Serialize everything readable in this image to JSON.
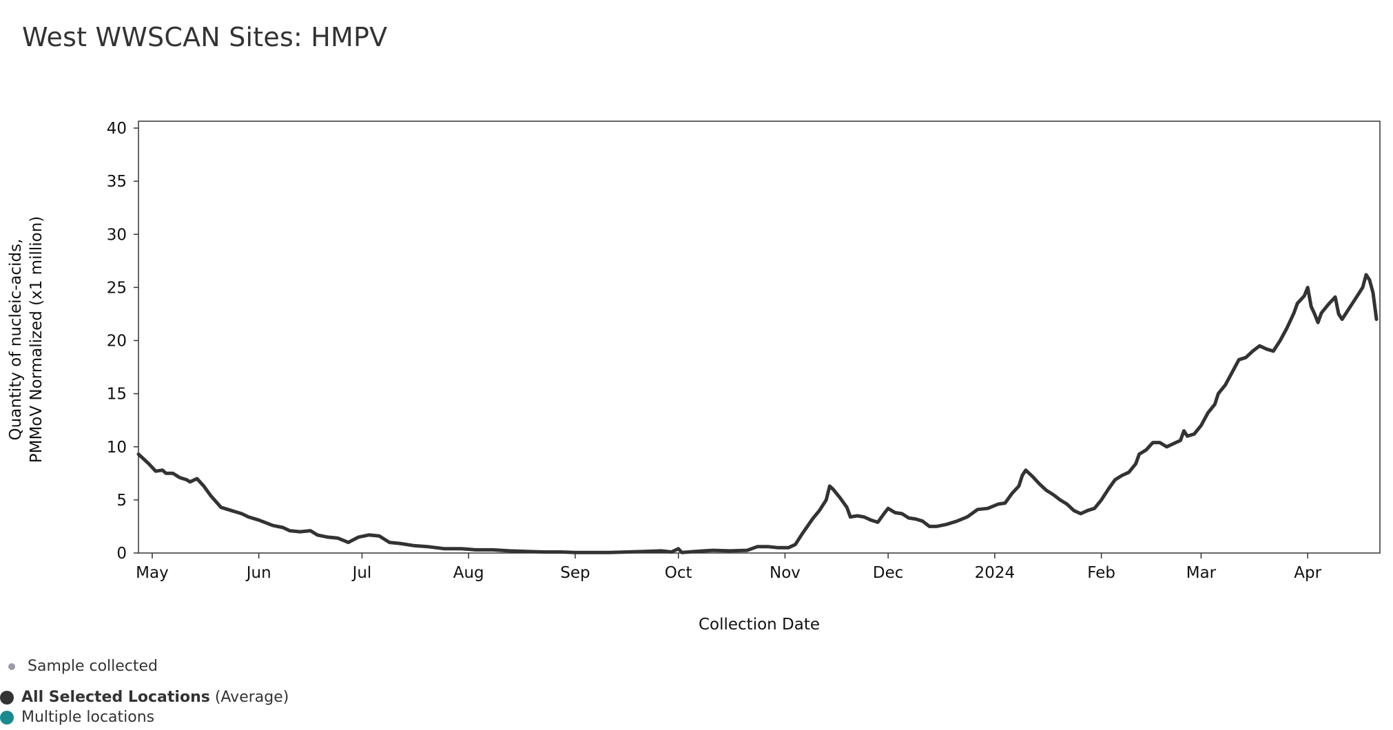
{
  "title": "West WWSCAN Sites: HMPV",
  "chart_data": {
    "type": "line",
    "title": "West WWSCAN Sites: HMPV",
    "xlabel": "Collection Date",
    "ylabel_line1": "Quantity of nucleic-acids,",
    "ylabel_line2": "PMMoV Normalized (x1 million)",
    "ylim": [
      0,
      40
    ],
    "yticks": [
      0,
      5,
      10,
      15,
      20,
      25,
      30,
      35,
      40
    ],
    "xlim": [
      "2023-04-27",
      "2024-04-22"
    ],
    "xticks": [
      {
        "date": "2023-05-01",
        "label": "May"
      },
      {
        "date": "2023-06-01",
        "label": "Jun"
      },
      {
        "date": "2023-07-01",
        "label": "Jul"
      },
      {
        "date": "2023-08-01",
        "label": "Aug"
      },
      {
        "date": "2023-09-01",
        "label": "Sep"
      },
      {
        "date": "2023-10-01",
        "label": "Oct"
      },
      {
        "date": "2023-11-01",
        "label": "Nov"
      },
      {
        "date": "2023-12-01",
        "label": "Dec"
      },
      {
        "date": "2024-01-01",
        "label": "2024"
      },
      {
        "date": "2024-02-01",
        "label": "Feb"
      },
      {
        "date": "2024-03-01",
        "label": "Mar"
      },
      {
        "date": "2024-04-01",
        "label": "Apr"
      }
    ],
    "grid": false,
    "series": [
      {
        "name": "All Selected Locations",
        "color": "#333333",
        "points": [
          [
            "2023-04-27",
            9.3
          ],
          [
            "2023-04-30",
            8.4
          ],
          [
            "2023-05-02",
            7.7
          ],
          [
            "2023-05-04",
            7.8
          ],
          [
            "2023-05-05",
            7.5
          ],
          [
            "2023-05-07",
            7.5
          ],
          [
            "2023-05-09",
            7.1
          ],
          [
            "2023-05-11",
            6.9
          ],
          [
            "2023-05-12",
            6.7
          ],
          [
            "2023-05-14",
            7.0
          ],
          [
            "2023-05-16",
            6.3
          ],
          [
            "2023-05-18",
            5.4
          ],
          [
            "2023-05-21",
            4.3
          ],
          [
            "2023-05-24",
            4.0
          ],
          [
            "2023-05-27",
            3.7
          ],
          [
            "2023-05-29",
            3.4
          ],
          [
            "2023-06-01",
            3.1
          ],
          [
            "2023-06-05",
            2.6
          ],
          [
            "2023-06-08",
            2.4
          ],
          [
            "2023-06-10",
            2.1
          ],
          [
            "2023-06-13",
            2.0
          ],
          [
            "2023-06-16",
            2.1
          ],
          [
            "2023-06-18",
            1.7
          ],
          [
            "2023-06-21",
            1.5
          ],
          [
            "2023-06-24",
            1.4
          ],
          [
            "2023-06-27",
            1.0
          ],
          [
            "2023-06-30",
            1.5
          ],
          [
            "2023-07-03",
            1.7
          ],
          [
            "2023-07-06",
            1.6
          ],
          [
            "2023-07-09",
            1.0
          ],
          [
            "2023-07-12",
            0.9
          ],
          [
            "2023-07-16",
            0.7
          ],
          [
            "2023-07-20",
            0.6
          ],
          [
            "2023-07-25",
            0.4
          ],
          [
            "2023-07-30",
            0.4
          ],
          [
            "2023-08-03",
            0.3
          ],
          [
            "2023-08-08",
            0.3
          ],
          [
            "2023-08-13",
            0.2
          ],
          [
            "2023-08-18",
            0.15
          ],
          [
            "2023-08-23",
            0.1
          ],
          [
            "2023-08-28",
            0.1
          ],
          [
            "2023-09-01",
            0.05
          ],
          [
            "2023-09-06",
            0.05
          ],
          [
            "2023-09-11",
            0.05
          ],
          [
            "2023-09-16",
            0.1
          ],
          [
            "2023-09-21",
            0.15
          ],
          [
            "2023-09-26",
            0.2
          ],
          [
            "2023-09-29",
            0.1
          ],
          [
            "2023-10-01",
            0.4
          ],
          [
            "2023-10-02",
            0.05
          ],
          [
            "2023-10-06",
            0.15
          ],
          [
            "2023-10-11",
            0.25
          ],
          [
            "2023-10-16",
            0.2
          ],
          [
            "2023-10-21",
            0.25
          ],
          [
            "2023-10-24",
            0.6
          ],
          [
            "2023-10-27",
            0.6
          ],
          [
            "2023-10-30",
            0.5
          ],
          [
            "2023-11-02",
            0.5
          ],
          [
            "2023-11-04",
            0.8
          ],
          [
            "2023-11-06",
            1.8
          ],
          [
            "2023-11-09",
            3.2
          ],
          [
            "2023-11-11",
            4.0
          ],
          [
            "2023-11-13",
            5.0
          ],
          [
            "2023-11-14",
            6.3
          ],
          [
            "2023-11-15",
            6.0
          ],
          [
            "2023-11-17",
            5.2
          ],
          [
            "2023-11-19",
            4.3
          ],
          [
            "2023-11-20",
            3.4
          ],
          [
            "2023-11-22",
            3.5
          ],
          [
            "2023-11-24",
            3.4
          ],
          [
            "2023-11-26",
            3.1
          ],
          [
            "2023-11-28",
            2.9
          ],
          [
            "2023-11-30",
            3.8
          ],
          [
            "2023-12-01",
            4.2
          ],
          [
            "2023-12-03",
            3.8
          ],
          [
            "2023-12-05",
            3.7
          ],
          [
            "2023-12-07",
            3.3
          ],
          [
            "2023-12-09",
            3.2
          ],
          [
            "2023-12-11",
            3.0
          ],
          [
            "2023-12-13",
            2.5
          ],
          [
            "2023-12-15",
            2.5
          ],
          [
            "2023-12-18",
            2.7
          ],
          [
            "2023-12-21",
            3.0
          ],
          [
            "2023-12-24",
            3.4
          ],
          [
            "2023-12-27",
            4.1
          ],
          [
            "2023-12-30",
            4.2
          ],
          [
            "2024-01-02",
            4.6
          ],
          [
            "2024-01-04",
            4.7
          ],
          [
            "2024-01-06",
            5.6
          ],
          [
            "2024-01-08",
            6.3
          ],
          [
            "2024-01-09",
            7.3
          ],
          [
            "2024-01-10",
            7.8
          ],
          [
            "2024-01-12",
            7.2
          ],
          [
            "2024-01-14",
            6.5
          ],
          [
            "2024-01-16",
            5.9
          ],
          [
            "2024-01-18",
            5.5
          ],
          [
            "2024-01-20",
            5.0
          ],
          [
            "2024-01-22",
            4.6
          ],
          [
            "2024-01-24",
            4.0
          ],
          [
            "2024-01-26",
            3.7
          ],
          [
            "2024-01-28",
            4.0
          ],
          [
            "2024-01-30",
            4.2
          ],
          [
            "2024-02-01",
            5.0
          ],
          [
            "2024-02-03",
            6.0
          ],
          [
            "2024-02-05",
            6.9
          ],
          [
            "2024-02-07",
            7.3
          ],
          [
            "2024-02-09",
            7.6
          ],
          [
            "2024-02-11",
            8.4
          ],
          [
            "2024-02-12",
            9.3
          ],
          [
            "2024-02-14",
            9.7
          ],
          [
            "2024-02-16",
            10.4
          ],
          [
            "2024-02-18",
            10.4
          ],
          [
            "2024-02-20",
            10.0
          ],
          [
            "2024-02-22",
            10.3
          ],
          [
            "2024-02-24",
            10.6
          ],
          [
            "2024-02-25",
            11.5
          ],
          [
            "2024-02-26",
            11.0
          ],
          [
            "2024-02-28",
            11.2
          ],
          [
            "2024-03-01",
            12.0
          ],
          [
            "2024-03-03",
            13.2
          ],
          [
            "2024-03-05",
            14.0
          ],
          [
            "2024-03-06",
            15.0
          ],
          [
            "2024-03-08",
            15.8
          ],
          [
            "2024-03-10",
            17.0
          ],
          [
            "2024-03-12",
            18.2
          ],
          [
            "2024-03-14",
            18.4
          ],
          [
            "2024-03-16",
            19.0
          ],
          [
            "2024-03-18",
            19.5
          ],
          [
            "2024-03-20",
            19.2
          ],
          [
            "2024-03-22",
            19.0
          ],
          [
            "2024-03-24",
            20.0
          ],
          [
            "2024-03-26",
            21.2
          ],
          [
            "2024-03-28",
            22.6
          ],
          [
            "2024-03-29",
            23.5
          ],
          [
            "2024-03-31",
            24.2
          ],
          [
            "2024-04-01",
            25.0
          ],
          [
            "2024-04-02",
            23.2
          ],
          [
            "2024-04-03",
            22.5
          ],
          [
            "2024-04-04",
            21.7
          ],
          [
            "2024-04-05",
            22.6
          ],
          [
            "2024-04-07",
            23.4
          ],
          [
            "2024-04-09",
            24.1
          ],
          [
            "2024-04-10",
            22.5
          ],
          [
            "2024-04-11",
            22.0
          ],
          [
            "2024-04-13",
            23.0
          ],
          [
            "2024-04-15",
            24.0
          ],
          [
            "2024-04-17",
            25.0
          ],
          [
            "2024-04-18",
            26.2
          ],
          [
            "2024-04-19",
            25.7
          ],
          [
            "2024-04-20",
            24.5
          ],
          [
            "2024-04-21",
            22.0
          ]
        ]
      }
    ]
  },
  "legend": {
    "sample_collected": "Sample collected",
    "all_selected_bold": "All Selected Locations",
    "all_selected_suffix": " (Average)",
    "multiple_locations": "Multiple locations",
    "colors": {
      "sample_dot": "#9a9ba8",
      "all_selected": "#333333",
      "multiple": "#1b8a8f"
    }
  }
}
